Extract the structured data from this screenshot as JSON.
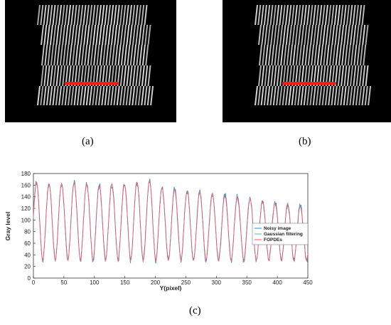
{
  "captions": {
    "a": "(a)",
    "b": "(b)",
    "c": "(c)"
  },
  "colors": {
    "noisy": "#2f8fd0",
    "gaussian": "#57c08a",
    "fopdes": "#ff4d6d",
    "stripe": "#d8d8d8",
    "laser": "#ff1a1a"
  },
  "chart_data": {
    "type": "line",
    "xlabel": "Y(pixel)",
    "ylabel": "Gray level",
    "xlim": [
      0,
      450
    ],
    "ylim": [
      0,
      180
    ],
    "xticks": [
      0,
      50,
      100,
      150,
      200,
      250,
      300,
      350,
      400,
      450
    ],
    "yticks": [
      0,
      20,
      40,
      60,
      80,
      100,
      120,
      140,
      160,
      180
    ],
    "grid": false,
    "legend_position": "right",
    "period": 20.6,
    "minimum_level": 30,
    "peak_x": [
      5,
      26,
      46,
      67,
      88,
      108,
      129,
      149,
      170,
      191,
      211,
      232,
      252,
      273,
      294,
      314,
      335,
      355,
      376,
      397,
      417,
      438
    ],
    "peak_y": [
      165,
      162,
      163,
      164,
      162,
      160,
      162,
      161,
      165,
      168,
      155,
      153,
      150,
      148,
      145,
      143,
      140,
      137,
      133,
      130,
      127,
      124
    ],
    "series": [
      {
        "name": "Noisy image"
      },
      {
        "name": "Gaussian filtering"
      },
      {
        "name": "FOPDEs"
      }
    ]
  }
}
